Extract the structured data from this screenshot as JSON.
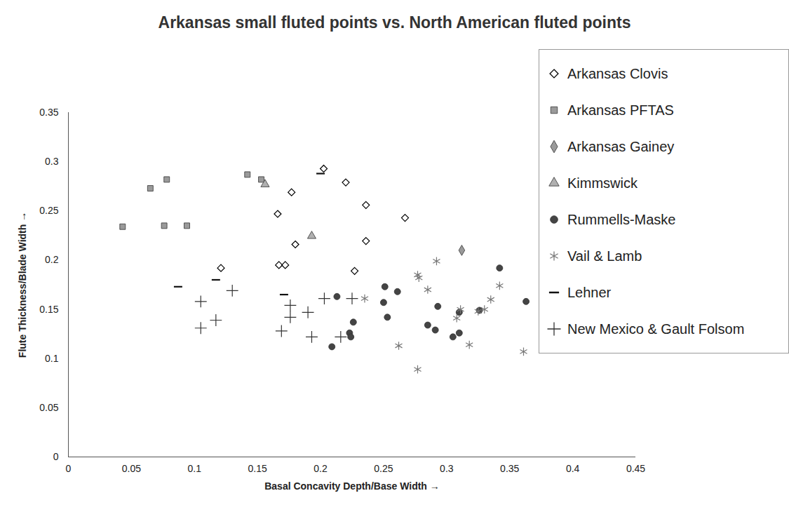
{
  "chart_data": {
    "type": "scatter",
    "title": "Arkansas small fluted points vs. North American fluted points",
    "x_label": "Basal Concavity Depth/Base Width",
    "y_label": "Flute Thickness/Blade Width",
    "xlim": [
      0,
      0.45
    ],
    "xticks": [
      0,
      0.05,
      0.1,
      0.15,
      0.2,
      0.25,
      0.3,
      0.35,
      0.4,
      0.45
    ],
    "ylim": [
      0,
      0.35
    ],
    "yticks": [
      0,
      0.05,
      0.1,
      0.15,
      0.2,
      0.25,
      0.3,
      0.35
    ],
    "grid": false,
    "legend": "top-right",
    "series": [
      {
        "name": "Arkansas Clovis",
        "color": "#000000",
        "marker": "diamond-open",
        "values": [
          [
            0.2025,
            0.293
          ],
          [
            0.177,
            0.269
          ],
          [
            0.166,
            0.247
          ],
          [
            0.18,
            0.216
          ],
          [
            0.22,
            0.279
          ],
          [
            0.236,
            0.256
          ],
          [
            0.267,
            0.243
          ],
          [
            0.236,
            0.2195
          ],
          [
            0.227,
            0.189
          ],
          [
            0.121,
            0.192
          ],
          [
            0.167,
            0.195
          ],
          [
            0.172,
            0.195
          ]
        ]
      },
      {
        "name": "Arkansas PFTAS",
        "color": "#9a9a9a",
        "marker": "square",
        "values": [
          [
            0.043,
            0.234
          ],
          [
            0.065,
            0.273
          ],
          [
            0.078,
            0.282
          ],
          [
            0.076,
            0.235
          ],
          [
            0.094,
            0.235
          ],
          [
            0.142,
            0.287
          ],
          [
            0.153,
            0.282
          ]
        ]
      },
      {
        "name": "Arkansas Gainey",
        "color": "#9a9a9a",
        "marker": "diamond",
        "values": [
          [
            0.312,
            0.21
          ]
        ]
      },
      {
        "name": "Kimmswick",
        "color": "#b0b0b0",
        "marker": "triangle",
        "values": [
          [
            0.156,
            0.277
          ],
          [
            0.193,
            0.2245
          ]
        ]
      },
      {
        "name": "Rummells-Maske",
        "color": "#444444",
        "marker": "circle",
        "values": [
          [
            0.209,
            0.112
          ],
          [
            0.213,
            0.163
          ],
          [
            0.226,
            0.137
          ],
          [
            0.223,
            0.126
          ],
          [
            0.224,
            0.122
          ],
          [
            0.251,
            0.173
          ],
          [
            0.25,
            0.157
          ],
          [
            0.253,
            0.142
          ],
          [
            0.261,
            0.168
          ],
          [
            0.285,
            0.134
          ],
          [
            0.291,
            0.129
          ],
          [
            0.293,
            0.153
          ],
          [
            0.305,
            0.122
          ],
          [
            0.31,
            0.126
          ],
          [
            0.31,
            0.147
          ],
          [
            0.326,
            0.149
          ],
          [
            0.342,
            0.192
          ],
          [
            0.363,
            0.158
          ]
        ]
      },
      {
        "name": "Vail  & Lamb",
        "color": "#777777",
        "marker": "asterisk",
        "values": [
          [
            0.235,
            0.161
          ],
          [
            0.262,
            0.113
          ],
          [
            0.277,
            0.185
          ],
          [
            0.278,
            0.182
          ],
          [
            0.277,
            0.089
          ],
          [
            0.285,
            0.17
          ],
          [
            0.292,
            0.199
          ],
          [
            0.308,
            0.141
          ],
          [
            0.311,
            0.15
          ],
          [
            0.318,
            0.114
          ],
          [
            0.325,
            0.148
          ],
          [
            0.33,
            0.15
          ],
          [
            0.335,
            0.16
          ],
          [
            0.342,
            0.174
          ],
          [
            0.361,
            0.107
          ]
        ]
      },
      {
        "name": "Lehner",
        "color": "#111111",
        "marker": "dash",
        "values": [
          [
            0.087,
            0.173
          ],
          [
            0.117,
            0.18
          ],
          [
            0.171,
            0.165
          ],
          [
            0.2,
            0.288
          ]
        ]
      },
      {
        "name": "New Mexico & Gault Folsom",
        "color": "#333333",
        "marker": "plus",
        "values": [
          [
            0.105,
            0.158
          ],
          [
            0.105,
            0.131
          ],
          [
            0.117,
            0.139
          ],
          [
            0.13,
            0.169
          ],
          [
            0.169,
            0.128
          ],
          [
            0.176,
            0.154
          ],
          [
            0.176,
            0.142
          ],
          [
            0.19,
            0.147
          ],
          [
            0.193,
            0.122
          ],
          [
            0.203,
            0.161
          ],
          [
            0.216,
            0.122
          ],
          [
            0.225,
            0.161
          ]
        ]
      }
    ]
  }
}
